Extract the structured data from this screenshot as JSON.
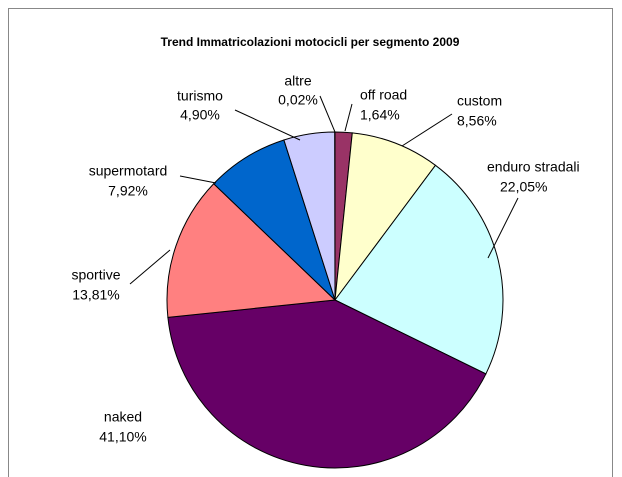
{
  "chart_data": {
    "type": "pie",
    "title": "Trend Immatricolazioni motocicli per segmento 2009",
    "categories": [
      "off road",
      "custom",
      "enduro stradali",
      "naked",
      "sportive",
      "supermotard",
      "turismo",
      "altre"
    ],
    "values": [
      1.64,
      8.56,
      22.05,
      41.1,
      13.81,
      7.92,
      4.9,
      0.02
    ],
    "value_labels": [
      "1,64%",
      "8,56%",
      "22,05%",
      "41,10%",
      "13,81%",
      "7,92%",
      "4,90%",
      "0,02%"
    ],
    "colors": [
      "#993366",
      "#ffffcc",
      "#ccffff",
      "#660066",
      "#ff8080",
      "#0066cc",
      "#ccccff",
      "#000000"
    ]
  }
}
